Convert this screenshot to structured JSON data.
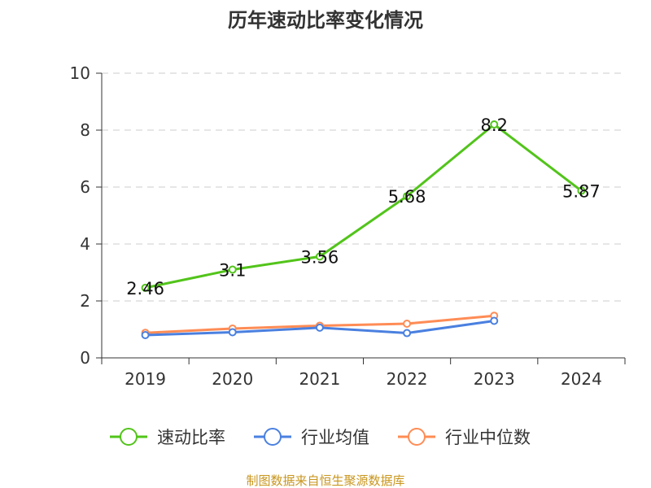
{
  "chart_data": {
    "type": "line",
    "title": "历年速动比率变化情况",
    "categories": [
      "2019",
      "2020",
      "2021",
      "2022",
      "2023",
      "2024"
    ],
    "ylim": [
      0,
      10
    ],
    "yticks": [
      0,
      2,
      4,
      6,
      8,
      10
    ],
    "grid": true,
    "legend_position": "bottom",
    "series": [
      {
        "name": "速动比率",
        "color": "#52c41a",
        "values": [
          2.46,
          3.1,
          3.56,
          5.68,
          8.2,
          5.87
        ],
        "labels": [
          "2.46",
          "3.1",
          "3.56",
          "5.68",
          "8.2",
          "5.87"
        ]
      },
      {
        "name": "行业均值",
        "color": "#4a80e0",
        "values": [
          0.8,
          0.9,
          1.06,
          0.87,
          1.3,
          null
        ]
      },
      {
        "name": "行业中位数",
        "color": "#ff8c55",
        "values": [
          0.88,
          1.03,
          1.13,
          1.2,
          1.48,
          null
        ]
      }
    ]
  },
  "source": "制图数据来自恒生聚源数据库"
}
